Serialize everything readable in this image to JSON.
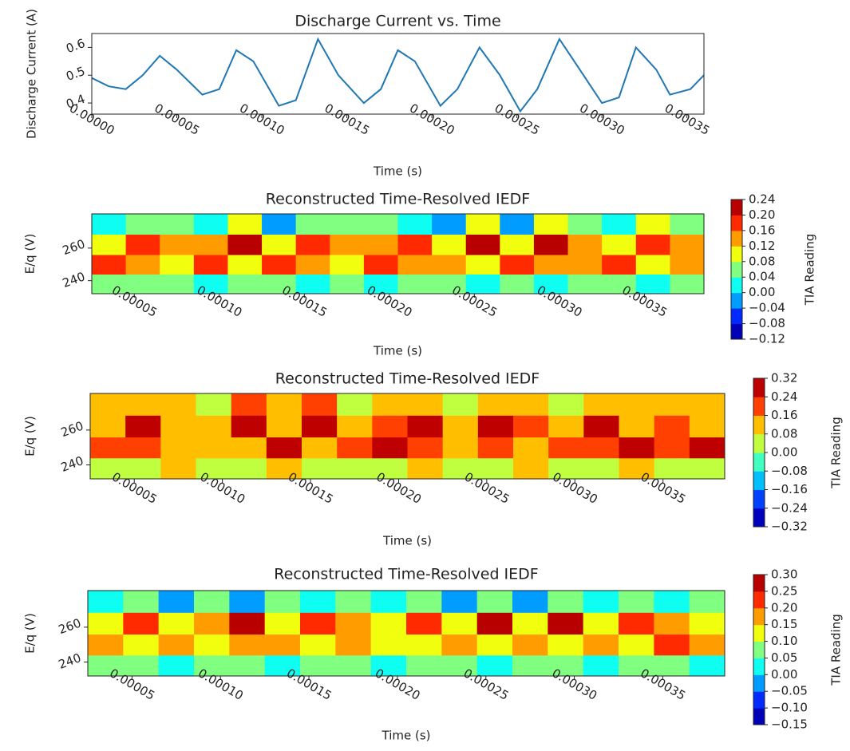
{
  "chart_data": [
    {
      "type": "line",
      "title": "Discharge Current vs. Time",
      "xlabel": "Time (s)",
      "ylabel": "Discharge Current (A)",
      "color": "#1f77b4",
      "x": [
        0,
        1e-05,
        2e-05,
        3e-05,
        4e-05,
        5e-05,
        6.5e-05,
        7.5e-05,
        8.5e-05,
        9.5e-05,
        0.00011,
        0.00012,
        0.000133,
        0.000145,
        0.00016,
        0.00017,
        0.00018,
        0.00019,
        0.000205,
        0.000215,
        0.000228,
        0.00024,
        0.000252,
        0.000262,
        0.000275,
        0.000287,
        0.0003,
        0.00031,
        0.00032,
        0.000332,
        0.00034,
        0.000352,
        0.00036
      ],
      "values": [
        0.49,
        0.46,
        0.45,
        0.5,
        0.57,
        0.52,
        0.43,
        0.45,
        0.59,
        0.55,
        0.39,
        0.41,
        0.63,
        0.5,
        0.4,
        0.45,
        0.59,
        0.55,
        0.39,
        0.45,
        0.6,
        0.5,
        0.37,
        0.45,
        0.63,
        0.52,
        0.4,
        0.42,
        0.6,
        0.52,
        0.43,
        0.45,
        0.5
      ],
      "xlim": [
        0,
        0.00036
      ],
      "ylim": [
        0.36,
        0.65
      ],
      "xticks": [
        {
          "value": 0,
          "label": "0.00000"
        },
        {
          "value": 5e-05,
          "label": "0.00005"
        },
        {
          "value": 0.0001,
          "label": "0.00010"
        },
        {
          "value": 0.00015,
          "label": "0.00015"
        },
        {
          "value": 0.0002,
          "label": "0.00020"
        },
        {
          "value": 0.00025,
          "label": "0.00025"
        },
        {
          "value": 0.0003,
          "label": "0.00030"
        },
        {
          "value": 0.00035,
          "label": "0.00035"
        }
      ],
      "yticks": [
        0.4,
        0.5,
        0.6
      ]
    },
    {
      "type": "heatmap",
      "title": "Reconstructed Time-Resolved IEDF",
      "xlabel": "Time (s)",
      "ylabel": "E/q (V)",
      "colorbar_label": "TIA Reading",
      "colormap": "jet",
      "x": [
        3.5e-05,
        5.5e-05,
        7.5e-05,
        9.5e-05,
        0.000115,
        0.000135,
        0.000155,
        0.000175,
        0.000195,
        0.000215,
        0.000235,
        0.000255,
        0.000275,
        0.000295,
        0.000315,
        0.000335,
        0.000355,
        0.000375
      ],
      "y": [
        238,
        250,
        262,
        275
      ],
      "z": [
        [
          0.04,
          0.06,
          0.04,
          0.02,
          0.04,
          0.06,
          0.02,
          0.04,
          0.02,
          0.04,
          0.06,
          0,
          0.04,
          0.02,
          0.06,
          0.04,
          0.02,
          0.04
        ],
        [
          0.16,
          0.12,
          0.1,
          0.16,
          0.1,
          0.16,
          0.12,
          0.1,
          0.16,
          0.12,
          0.14,
          0.1,
          0.16,
          0.12,
          0.14,
          0.16,
          0.1,
          0.14
        ],
        [
          0.1,
          0.18,
          0.14,
          0.12,
          0.2,
          0.1,
          0.18,
          0.14,
          0.12,
          0.18,
          0.1,
          0.22,
          0.1,
          0.2,
          0.12,
          0.1,
          0.18,
          0.12
        ],
        [
          0,
          0.06,
          0.04,
          0.02,
          0.08,
          -0.02,
          0.06,
          0.04,
          0.06,
          0.02,
          -0.02,
          0.1,
          -0.04,
          0.08,
          0.04,
          0.02,
          0.08,
          0.04
        ]
      ],
      "xlim": [
        2.5e-05,
        0.000385
      ],
      "ylim": [
        232,
        281
      ],
      "xticks": [
        {
          "value": 5e-05,
          "label": "0.00005"
        },
        {
          "value": 0.0001,
          "label": "0.00010"
        },
        {
          "value": 0.00015,
          "label": "0.00015"
        },
        {
          "value": 0.0002,
          "label": "0.00020"
        },
        {
          "value": 0.00025,
          "label": "0.00025"
        },
        {
          "value": 0.0003,
          "label": "0.00030"
        },
        {
          "value": 0.00035,
          "label": "0.00035"
        }
      ],
      "yticks": [
        240,
        260
      ],
      "cticks": [
        {
          "value": -0.12,
          "label": "−0.12"
        },
        {
          "value": -0.08,
          "label": "−0.08"
        },
        {
          "value": -0.04,
          "label": "−0.04"
        },
        {
          "value": 0,
          "label": "0.00"
        },
        {
          "value": 0.04,
          "label": "0.04"
        },
        {
          "value": 0.08,
          "label": "0.08"
        },
        {
          "value": 0.12,
          "label": "0.12"
        },
        {
          "value": 0.16,
          "label": "0.16"
        },
        {
          "value": 0.2,
          "label": "0.20"
        },
        {
          "value": 0.24,
          "label": "0.24"
        }
      ]
    },
    {
      "type": "heatmap",
      "title": "Reconstructed Time-Resolved IEDF",
      "xlabel": "Time (s)",
      "ylabel": "E/q (V)",
      "colorbar_label": "TIA Reading",
      "colormap": "jet",
      "x": [
        3.5e-05,
        5.5e-05,
        7.5e-05,
        9.5e-05,
        0.000115,
        0.000135,
        0.000155,
        0.000175,
        0.000195,
        0.000215,
        0.000235,
        0.000255,
        0.000275,
        0.000295,
        0.000315,
        0.000335,
        0.000355,
        0.000375
      ],
      "y": [
        238,
        250,
        262,
        275
      ],
      "z": [
        [
          0,
          0,
          0.08,
          0,
          0,
          0.08,
          0,
          0,
          0,
          0.08,
          0,
          0,
          0.08,
          0,
          0,
          0.08,
          0,
          0
        ],
        [
          0.16,
          0.16,
          0.08,
          0.08,
          0.08,
          0.24,
          0.08,
          0.16,
          0.24,
          0.16,
          0.08,
          0.16,
          0.08,
          0.16,
          0.16,
          0.24,
          0.16,
          0.24
        ],
        [
          0.08,
          0.24,
          0.08,
          0.08,
          0.24,
          0.08,
          0.24,
          0.08,
          0.16,
          0.24,
          0.08,
          0.24,
          0.16,
          0.08,
          0.24,
          0.08,
          0.16,
          0.08
        ],
        [
          0.08,
          0.08,
          0.08,
          0,
          0.16,
          0.08,
          0.16,
          0,
          0.08,
          0.08,
          0,
          0.08,
          0.08,
          0,
          0.08,
          0.08,
          0.08,
          0.08
        ]
      ],
      "xlim": [
        2.5e-05,
        0.000385
      ],
      "ylim": [
        232,
        281
      ],
      "xticks": [
        {
          "value": 5e-05,
          "label": "0.00005"
        },
        {
          "value": 0.0001,
          "label": "0.00010"
        },
        {
          "value": 0.00015,
          "label": "0.00015"
        },
        {
          "value": 0.0002,
          "label": "0.00020"
        },
        {
          "value": 0.00025,
          "label": "0.00025"
        },
        {
          "value": 0.0003,
          "label": "0.00030"
        },
        {
          "value": 0.00035,
          "label": "0.00035"
        }
      ],
      "yticks": [
        240,
        260
      ],
      "cticks": [
        {
          "value": -0.32,
          "label": "−0.32"
        },
        {
          "value": -0.24,
          "label": "−0.24"
        },
        {
          "value": -0.16,
          "label": "−0.16"
        },
        {
          "value": -0.08,
          "label": "−0.08"
        },
        {
          "value": 0,
          "label": "0.00"
        },
        {
          "value": 0.08,
          "label": "0.08"
        },
        {
          "value": 0.16,
          "label": "0.16"
        },
        {
          "value": 0.24,
          "label": "0.24"
        },
        {
          "value": 0.32,
          "label": "0.32"
        }
      ]
    },
    {
      "type": "heatmap",
      "title": "Reconstructed Time-Resolved IEDF",
      "xlabel": "Time (s)",
      "ylabel": "E/q (V)",
      "colorbar_label": "TIA Reading",
      "colormap": "jet",
      "x": [
        3.5e-05,
        5.5e-05,
        7.5e-05,
        9.5e-05,
        0.000115,
        0.000135,
        0.000155,
        0.000175,
        0.000195,
        0.000215,
        0.000235,
        0.000255,
        0.000275,
        0.000295,
        0.000315,
        0.000335,
        0.000355,
        0.000375
      ],
      "y": [
        238,
        250,
        262,
        275
      ],
      "z": [
        [
          0.05,
          0.05,
          0,
          0.05,
          0.05,
          0,
          0.05,
          0.05,
          0,
          0.05,
          0.05,
          0,
          0.05,
          0.05,
          0,
          0.05,
          0.05,
          0
        ],
        [
          0.15,
          0.1,
          0.15,
          0.1,
          0.15,
          0.15,
          0.1,
          0.15,
          0.1,
          0.1,
          0.15,
          0.1,
          0.15,
          0.1,
          0.15,
          0.1,
          0.2,
          0.15
        ],
        [
          0.1,
          0.2,
          0.1,
          0.15,
          0.25,
          0.1,
          0.2,
          0.15,
          0.1,
          0.2,
          0.1,
          0.25,
          0.1,
          0.25,
          0.1,
          0.2,
          0.15,
          0.1
        ],
        [
          0,
          0.05,
          -0.05,
          0.05,
          -0.05,
          0.05,
          0,
          0.05,
          0,
          0.05,
          -0.05,
          0.05,
          -0.05,
          0.05,
          0,
          0.05,
          0,
          0.05
        ]
      ],
      "xlim": [
        2.5e-05,
        0.000385
      ],
      "ylim": [
        232,
        281
      ],
      "xticks": [
        {
          "value": 5e-05,
          "label": "0.00005"
        },
        {
          "value": 0.0001,
          "label": "0.00010"
        },
        {
          "value": 0.00015,
          "label": "0.00015"
        },
        {
          "value": 0.0002,
          "label": "0.00020"
        },
        {
          "value": 0.00025,
          "label": "0.00025"
        },
        {
          "value": 0.0003,
          "label": "0.00030"
        },
        {
          "value": 0.00035,
          "label": "0.00035"
        }
      ],
      "yticks": [
        240,
        260
      ],
      "cticks": [
        {
          "value": -0.15,
          "label": "−0.15"
        },
        {
          "value": -0.1,
          "label": "−0.10"
        },
        {
          "value": -0.05,
          "label": "−0.05"
        },
        {
          "value": 0,
          "label": "0.00"
        },
        {
          "value": 0.05,
          "label": "0.05"
        },
        {
          "value": 0.1,
          "label": "0.10"
        },
        {
          "value": 0.15,
          "label": "0.15"
        },
        {
          "value": 0.2,
          "label": "0.20"
        },
        {
          "value": 0.25,
          "label": "0.25"
        },
        {
          "value": 0.3,
          "label": "0.30"
        }
      ]
    }
  ]
}
